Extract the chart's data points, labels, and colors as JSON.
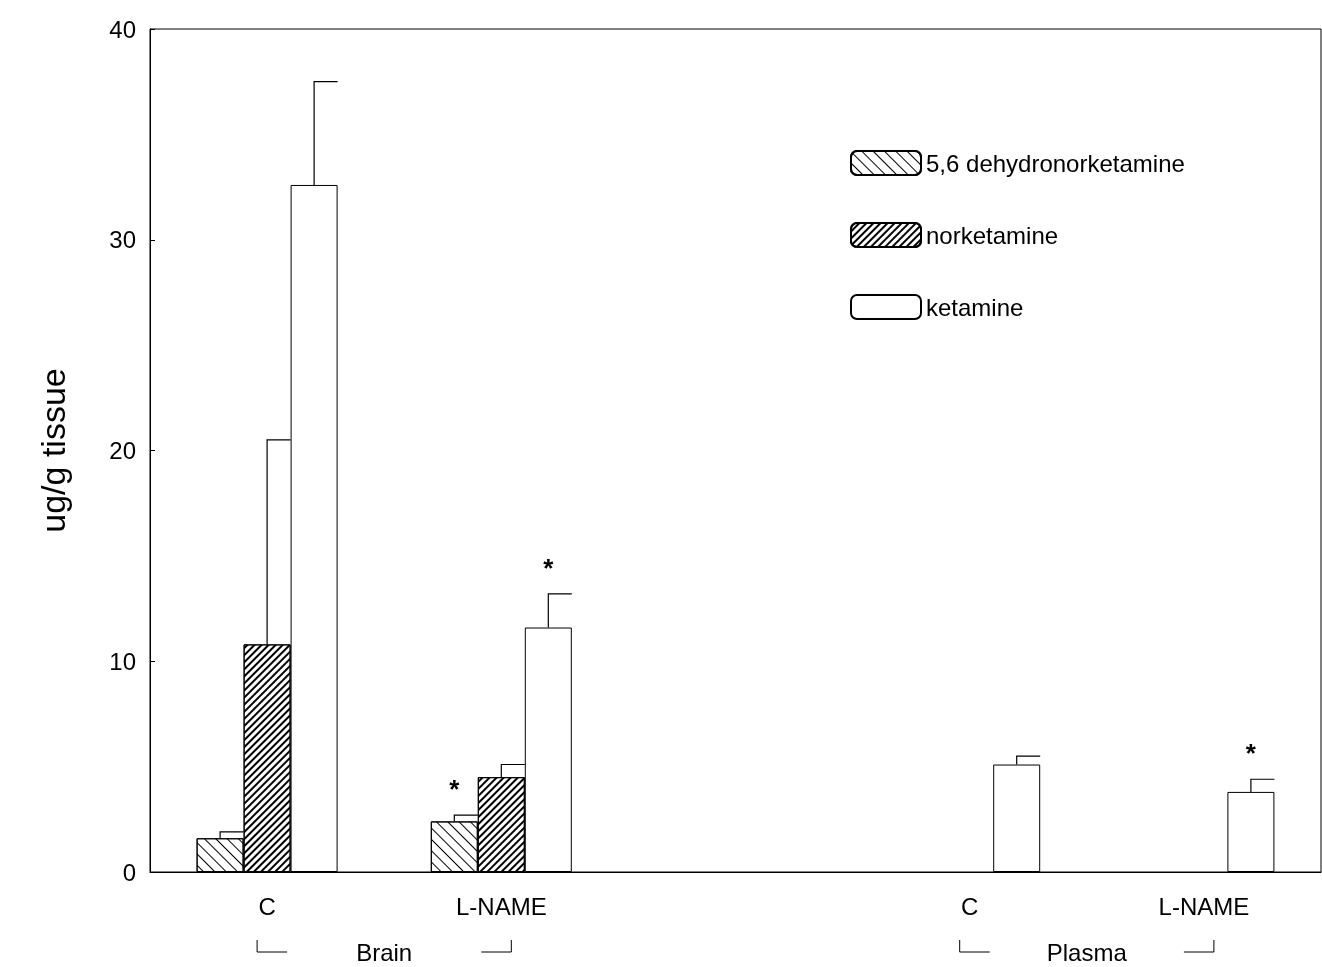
{
  "chart_data": {
    "type": "bar",
    "ylabel": "ug/g tissue",
    "categories": [
      "C",
      "L-NAME",
      null,
      "C",
      "L-NAME"
    ],
    "series": [
      {
        "name": "5,6 dehydronorketamine",
        "color": "#ffffff",
        "values": [
          1.6,
          2.4,
          null,
          null,
          null
        ],
        "errors": [
          0.3,
          0.3,
          null,
          null,
          null
        ]
      },
      {
        "name": "norketamine",
        "color": "#ffffff",
        "values": [
          10.8,
          4.5,
          null,
          null,
          null
        ],
        "errors": [
          9.7,
          0.6,
          null,
          null,
          null
        ]
      },
      {
        "name": "ketamine",
        "color": "#ffffff",
        "values": [
          32.6,
          11.6,
          null,
          5.1,
          3.8
        ],
        "errors": [
          4.9,
          1.6,
          null,
          0.4,
          0.6
        ]
      }
    ],
    "ylim": [
      0,
      40
    ],
    "yticks": [
      0,
      10,
      20,
      30,
      40
    ],
    "grid": false,
    "legend": "top right",
    "annotations": [
      "Brain",
      "Plasma",
      "*",
      "*",
      "*"
    ]
  }
}
